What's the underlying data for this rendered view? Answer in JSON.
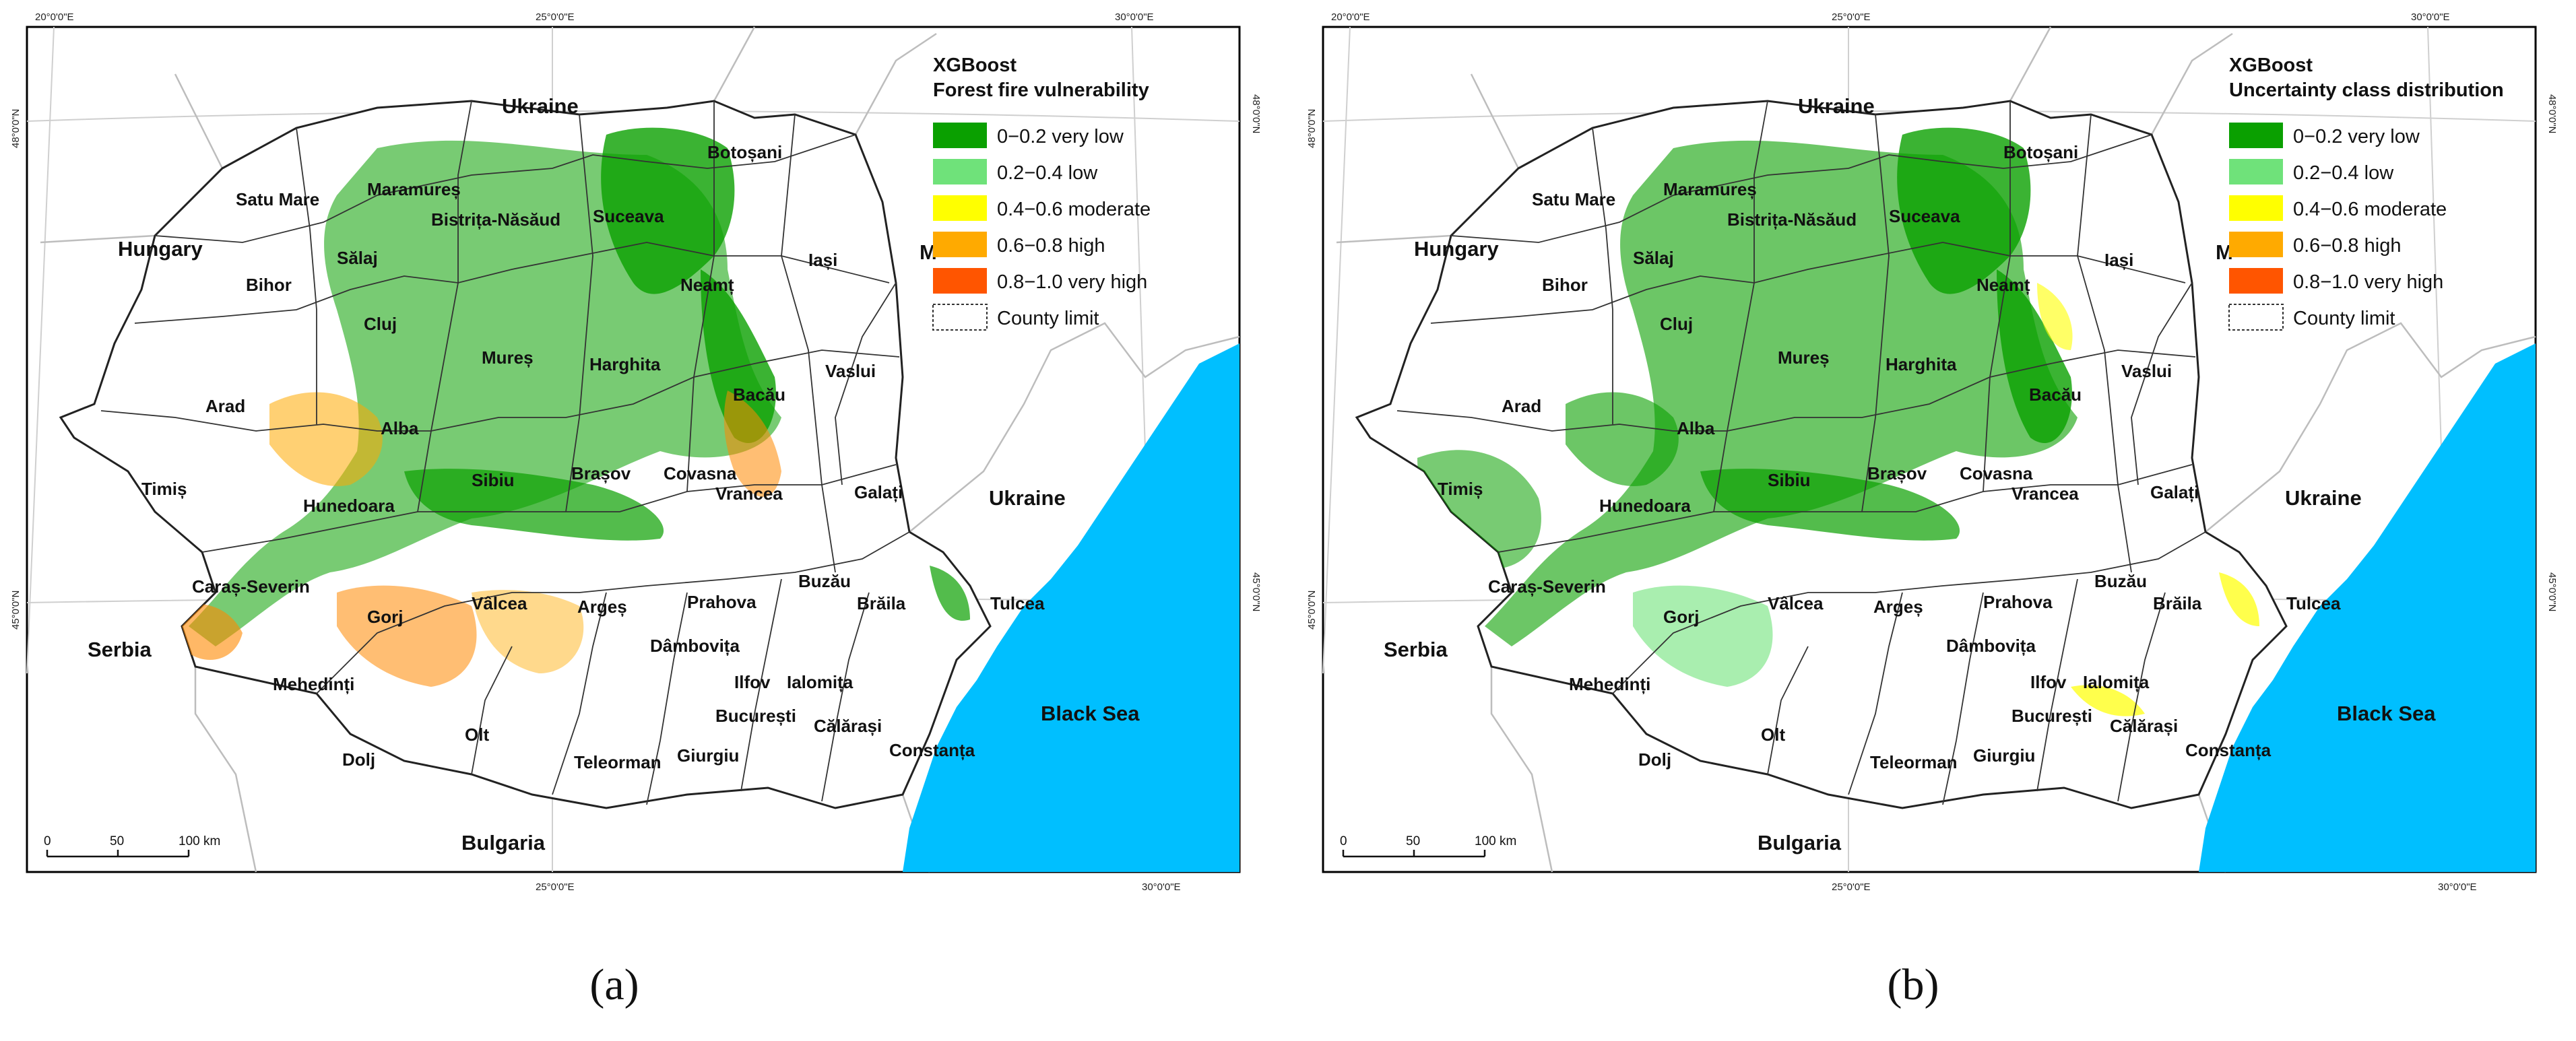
{
  "panels": [
    {
      "id": "a",
      "caption": "(a)",
      "legend": {
        "title_line1": "XGBoost",
        "title_line2": "Forest fire vulnerability",
        "classes": [
          {
            "label": "0−0.2 very low",
            "color": "#0aa000"
          },
          {
            "label": "0.2−0.4 low",
            "color": "#6fe27a"
          },
          {
            "label": "0.4−0.6 moderate",
            "color": "#ffff00"
          },
          {
            "label": "0.6−0.8 high",
            "color": "#ffaa00"
          },
          {
            "label": "0.8−1.0 very high",
            "color": "#ff5500"
          }
        ],
        "county_limit_label": "County limit"
      }
    },
    {
      "id": "b",
      "caption": "(b)",
      "legend": {
        "title_line1": "XGBoost",
        "title_line2": "Uncertainty class distribution",
        "classes": [
          {
            "label": "0−0.2 very low",
            "color": "#0aa000"
          },
          {
            "label": "0.2−0.4 low",
            "color": "#6fe27a"
          },
          {
            "label": "0.4−0.6 moderate",
            "color": "#ffff00"
          },
          {
            "label": "0.6−0.8 high",
            "color": "#ffaa00"
          },
          {
            "label": "0.8−1.0 very high",
            "color": "#ff5500"
          }
        ],
        "county_limit_label": "County limit"
      }
    }
  ],
  "countries": {
    "ukraine": "Ukraine",
    "hungary": "Hungary",
    "serbia": "Serbia",
    "bulgaria": "Bulgaria",
    "moldova_partial": "M"
  },
  "sea": "Black Sea",
  "counties": [
    "Satu Mare",
    "Maramureș",
    "Suceava",
    "Botoșani",
    "Sălaj",
    "Bistrița-Năsăud",
    "Iași",
    "Bihor",
    "Neamț",
    "Cluj",
    "Mureș",
    "Harghita",
    "Vaslui",
    "Arad",
    "Alba",
    "Bacău",
    "Sibiu",
    "Covasna",
    "Brașov",
    "Timiș",
    "Hunedoara",
    "Vrancea",
    "Galați",
    "Caraș-Severin",
    "Buzău",
    "Gorj",
    "Vâlcea",
    "Argeș",
    "Prahova",
    "Brăila",
    "Tulcea",
    "Dâmbovița",
    "Mehedinți",
    "Ilfov",
    "Ialomița",
    "București",
    "Olt",
    "Dolj",
    "Călărași",
    "Teleorman",
    "Giurgiu",
    "Constanța"
  ],
  "coords": {
    "top_20": "20°0'0\"E",
    "top_25": "25°0'0\"E",
    "top_30": "30°0'0\"E",
    "bottom_25": "25°0'0\"E",
    "bottom_30": "30°0'0\"E",
    "lat_48": "48°0'0\"N",
    "lat_45": "45°0'0\"N"
  },
  "scalebar": {
    "t0": "0",
    "t1": "50",
    "t2": "100 km"
  },
  "colors": {
    "sea": "#00bfff",
    "very_low": "#0aa000",
    "low": "#6fe27a",
    "moderate": "#ffff00",
    "high": "#ffaa00",
    "very_high": "#ff5500"
  }
}
